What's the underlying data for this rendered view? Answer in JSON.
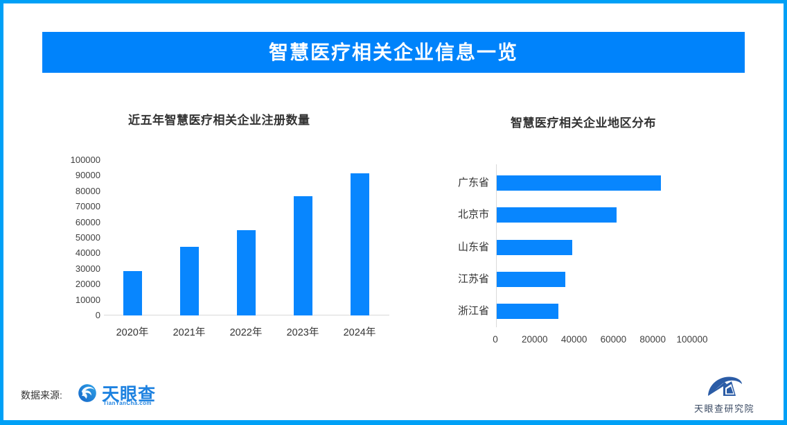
{
  "banner": {
    "title": "智慧医疗相关企业信息一览",
    "bg_color": "#0083fb",
    "text_color": "#ffffff"
  },
  "frame": {
    "border_color": "#00a0f6"
  },
  "bar_color": "#0886fe",
  "chart_data": [
    {
      "type": "bar",
      "title": "近五年智慧医疗相关企业注册数量",
      "categories": [
        "2020年",
        "2021年",
        "2022年",
        "2023年",
        "2024年"
      ],
      "values": [
        28500,
        44000,
        55000,
        77000,
        91500
      ],
      "ylabel": "",
      "xlabel": "",
      "ylim": [
        0,
        100000
      ],
      "yticks": [
        0,
        10000,
        20000,
        30000,
        40000,
        50000,
        60000,
        70000,
        80000,
        90000,
        100000
      ],
      "grid": false,
      "legend": "none"
    },
    {
      "type": "bar-horizontal",
      "title": "智慧医疗相关企业地区分布",
      "categories": [
        "广东省",
        "北京市",
        "山东省",
        "江苏省",
        "浙江省"
      ],
      "values": [
        83500,
        61000,
        38500,
        35000,
        31500
      ],
      "ylabel": "",
      "xlabel": "",
      "xlim": [
        0,
        100000
      ],
      "xticks": [
        0,
        20000,
        40000,
        60000,
        80000,
        100000
      ],
      "grid": false,
      "legend": "none"
    }
  ],
  "footer": {
    "source_label": "数据来源:",
    "source_logo_name": "天眼查",
    "source_logo_sub": "TianYanCha.com",
    "institute_name": "天眼查研究院"
  }
}
